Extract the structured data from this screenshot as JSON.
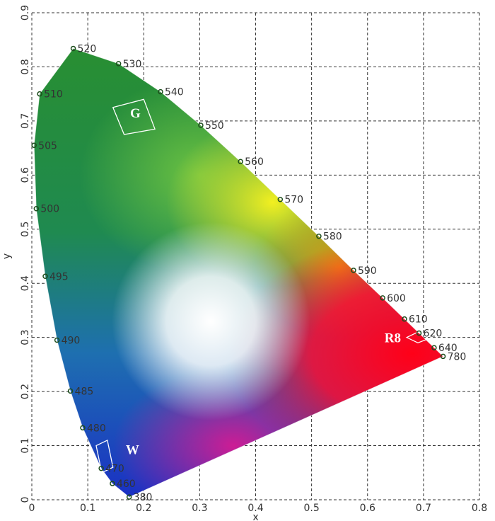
{
  "chart_data": {
    "type": "scatter",
    "x_label": "x",
    "y_label": "y",
    "xlim": [
      0,
      0.8
    ],
    "ylim": [
      0,
      0.9
    ],
    "xticks": [
      0,
      0.1,
      0.2,
      0.3,
      0.4,
      0.5,
      0.6,
      0.7,
      0.8
    ],
    "yticks": [
      0,
      0.1,
      0.2,
      0.3,
      0.4,
      0.5,
      0.6,
      0.7,
      0.8,
      0.9
    ],
    "grid": true,
    "grid_color": "#333",
    "marker_color": "#1d4d1d",
    "point_labels": [
      "380",
      "460",
      "470",
      "480",
      "485",
      "490",
      "495",
      "500",
      "505",
      "510",
      "520",
      "530",
      "540",
      "550",
      "560",
      "570",
      "580",
      "590",
      "600",
      "610",
      "620",
      "640",
      "780"
    ],
    "x": [
      0.174,
      0.144,
      0.124,
      0.091,
      0.069,
      0.045,
      0.024,
      0.008,
      0.004,
      0.014,
      0.074,
      0.155,
      0.23,
      0.302,
      0.373,
      0.444,
      0.513,
      0.575,
      0.627,
      0.666,
      0.692,
      0.719,
      0.735
    ],
    "y": [
      0.005,
      0.03,
      0.058,
      0.133,
      0.201,
      0.295,
      0.413,
      0.538,
      0.655,
      0.75,
      0.834,
      0.806,
      0.754,
      0.692,
      0.625,
      0.555,
      0.487,
      0.424,
      0.373,
      0.334,
      0.308,
      0.281,
      0.265
    ],
    "annotations": [
      "G",
      "W",
      "R8"
    ]
  }
}
